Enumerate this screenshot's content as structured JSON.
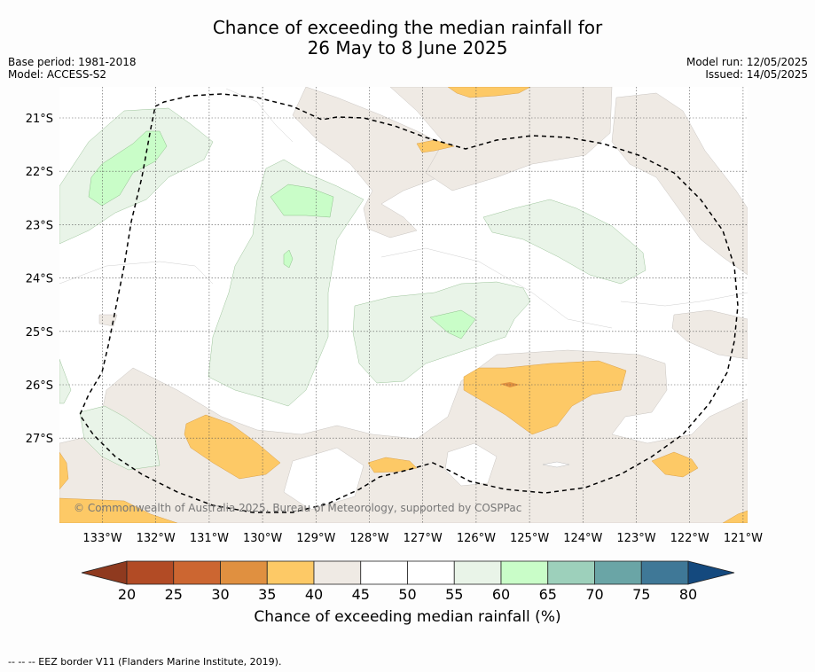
{
  "title": {
    "line1": "Chance of exceeding the median rainfall for",
    "line2": "26 May to 8 June 2025"
  },
  "meta_left": {
    "base_period": "Base period: 1981-2018",
    "model": "Model: ACCESS-S2"
  },
  "meta_right": {
    "model_run": "Model run: 12/05/2025",
    "issued": "Issued: 14/05/2025"
  },
  "map": {
    "lon_labels": [
      "133°W",
      "132°W",
      "131°W",
      "130°W",
      "129°W",
      "128°W",
      "127°W",
      "126°W",
      "125°W",
      "124°W",
      "123°W",
      "122°W",
      "121°W"
    ],
    "lat_labels": [
      "21°S",
      "22°S",
      "23°S",
      "24°S",
      "25°S",
      "26°S",
      "27°S"
    ],
    "copyright": "© Commonwealth of Australia 2025, Bureau of Meteorology, supported by COSPPac",
    "boundary": "EEZ border (dashed)"
  },
  "colorbar": {
    "ticks": [
      "20",
      "25",
      "30",
      "35",
      "40",
      "45",
      "50",
      "55",
      "60",
      "65",
      "70",
      "75",
      "80"
    ],
    "colors": [
      "#8f3a1f",
      "#b24b25",
      "#cc6631",
      "#e09040",
      "#fdc966",
      "#efeae4",
      "#ffffff",
      "#ffffff",
      "#e9f4e8",
      "#c9fdc8",
      "#9dd0bb",
      "#6aa5a6",
      "#3f7897",
      "#14497e"
    ],
    "label": "Chance of exceeding median rainfall (%)"
  },
  "footer": "--  --  -- EEZ border V11 (Flanders Marine Institute, 2019)."
}
